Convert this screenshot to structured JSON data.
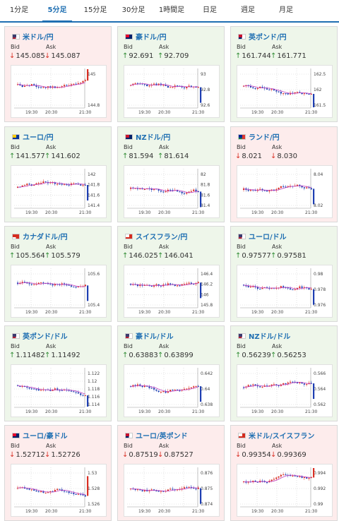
{
  "tabs": [
    {
      "label": "1分足",
      "active": false
    },
    {
      "label": "5分足",
      "active": true
    },
    {
      "label": "15分足",
      "active": false
    },
    {
      "label": "30分足",
      "active": false
    },
    {
      "label": "1時間足",
      "active": false
    },
    {
      "label": "日足",
      "active": false
    },
    {
      "label": "週足",
      "active": false
    },
    {
      "label": "月足",
      "active": false
    }
  ],
  "labels": {
    "bid": "Bid",
    "ask": "Ask"
  },
  "colors": {
    "accent": "#1f6fb2",
    "up": "#2e8b32",
    "down": "#d93025",
    "up_card": "#eef6ea",
    "down_card": "#fdecec"
  },
  "x_ticks": [
    "19:30",
    "20:30",
    "21:30"
  ],
  "pairs": [
    {
      "name": "米ドル/円",
      "flag": "us-flag",
      "trend": "down",
      "bid": "145.085",
      "ask": "145.087",
      "yticks": [
        "145",
        "144.8"
      ]
    },
    {
      "name": "豪ドル/円",
      "flag": "au-flag",
      "trend": "up",
      "bid": "92.691",
      "ask": "92.709",
      "yticks": [
        "93",
        "92.8",
        "92.6"
      ]
    },
    {
      "name": "英ポンド/円",
      "flag": "gb-flag",
      "trend": "up",
      "bid": "161.744",
      "ask": "161.771",
      "yticks": [
        "162.5",
        "162",
        "161.5"
      ]
    },
    {
      "name": "ユーロ/円",
      "flag": "eu-flag",
      "trend": "up",
      "bid": "141.577",
      "ask": "141.602",
      "yticks": [
        "142",
        "141.8",
        "141.6",
        "141.4"
      ]
    },
    {
      "name": "NZドル/円",
      "flag": "nz-flag",
      "trend": "up",
      "bid": "81.594",
      "ask": "81.614",
      "yticks": [
        "82",
        "81.8",
        "81.6",
        "81.4"
      ]
    },
    {
      "name": "ランド/円",
      "flag": "za-flag",
      "trend": "down",
      "bid": "8.021",
      "ask": "8.030",
      "yticks": [
        "8.04",
        "8.02"
      ]
    },
    {
      "name": "カナダドル/円",
      "flag": "ca-flag",
      "trend": "up",
      "bid": "105.564",
      "ask": "105.579",
      "yticks": [
        "105.6",
        "105.4"
      ]
    },
    {
      "name": "スイスフラン/円",
      "flag": "ch-flag",
      "trend": "up",
      "bid": "146.025",
      "ask": "146.041",
      "yticks": [
        "146.4",
        "146.2",
        "146",
        "145.8"
      ]
    },
    {
      "name": "ユーロ/ドル",
      "flag": "eu-us-flag",
      "trend": "up",
      "bid": "0.97577",
      "ask": "0.97581",
      "yticks": [
        "0.98",
        "0.978",
        "0.976"
      ]
    },
    {
      "name": "英ポンド/ドル",
      "flag": "gb-us-flag",
      "trend": "up",
      "bid": "1.11482",
      "ask": "1.11492",
      "yticks": [
        "1.122",
        "1.12",
        "1.118",
        "1.116",
        "1.114"
      ]
    },
    {
      "name": "豪ドル/ドル",
      "flag": "au-us-flag",
      "trend": "up",
      "bid": "0.63883",
      "ask": "0.63899",
      "yticks": [
        "0.642",
        "0.64",
        "0.638"
      ]
    },
    {
      "name": "NZドル/ドル",
      "flag": "nz-us-flag",
      "trend": "up",
      "bid": "0.56239",
      "ask": "0.56253",
      "yticks": [
        "0.566",
        "0.564",
        "0.562"
      ]
    },
    {
      "name": "ユーロ/豪ドル",
      "flag": "eu-au-flag",
      "trend": "down",
      "bid": "1.52712",
      "ask": "1.52726",
      "yticks": [
        "1.53",
        "1.528",
        "1.526"
      ]
    },
    {
      "name": "ユーロ/英ポンド",
      "flag": "eu-gb-flag",
      "trend": "down",
      "bid": "0.87519",
      "ask": "0.87527",
      "yticks": [
        "0.876",
        "0.875",
        "0.874"
      ]
    },
    {
      "name": "米ドル/スイスフラン",
      "flag": "us-ch-flag",
      "trend": "down",
      "bid": "0.99354",
      "ask": "0.99369",
      "yticks": [
        "0.994",
        "0.992",
        "0.99"
      ]
    }
  ]
}
